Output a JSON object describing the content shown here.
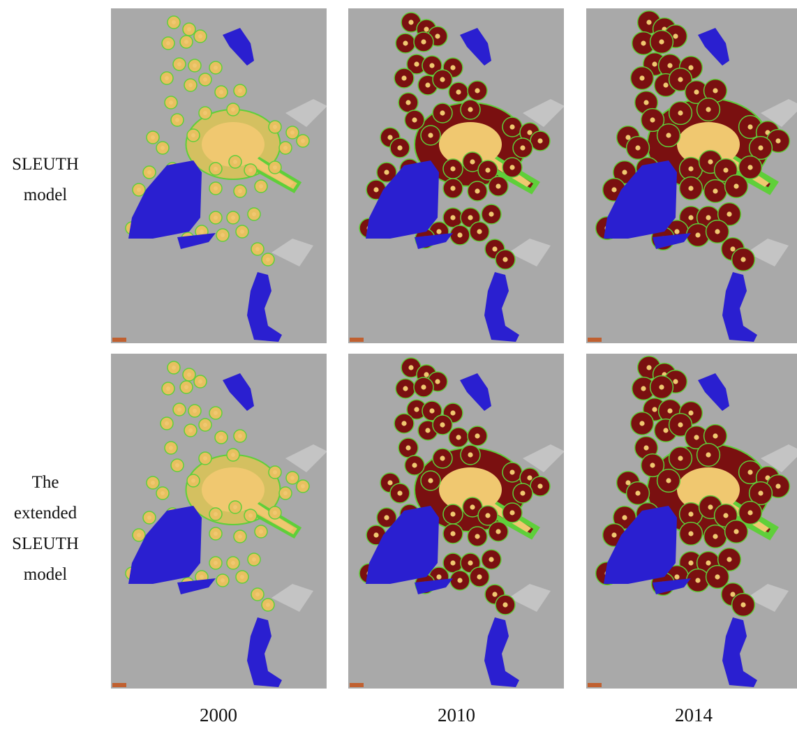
{
  "rows": [
    {
      "label_lines": [
        "SLEUTH",
        "model"
      ]
    },
    {
      "label_lines": [
        "The",
        "extended",
        "SLEUTH",
        "model"
      ]
    }
  ],
  "columns": [
    {
      "label": "2000"
    },
    {
      "label": "2010"
    },
    {
      "label": "2014"
    }
  ]
}
